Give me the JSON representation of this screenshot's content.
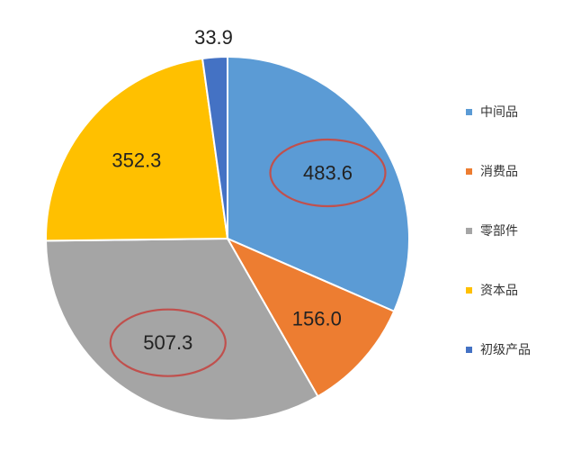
{
  "chart_data": {
    "type": "pie",
    "title": "",
    "categories": [
      "中间品",
      "消费品",
      "零部件",
      "资本品",
      "初级产品"
    ],
    "values": [
      483.6,
      156.0,
      507.3,
      352.3,
      33.9
    ],
    "value_labels": [
      "483.6",
      "156.0",
      "507.3",
      "352.3",
      "33.9"
    ],
    "colors": [
      "#5b9bd5",
      "#ed7d31",
      "#a5a5a5",
      "#ffc000",
      "#4472c4"
    ],
    "start_angle_deg": 0,
    "direction": "clockwise",
    "legend_position": "right",
    "highlighted_categories": [
      "中间品",
      "零部件"
    ],
    "highlight_color": "#c0504d"
  }
}
